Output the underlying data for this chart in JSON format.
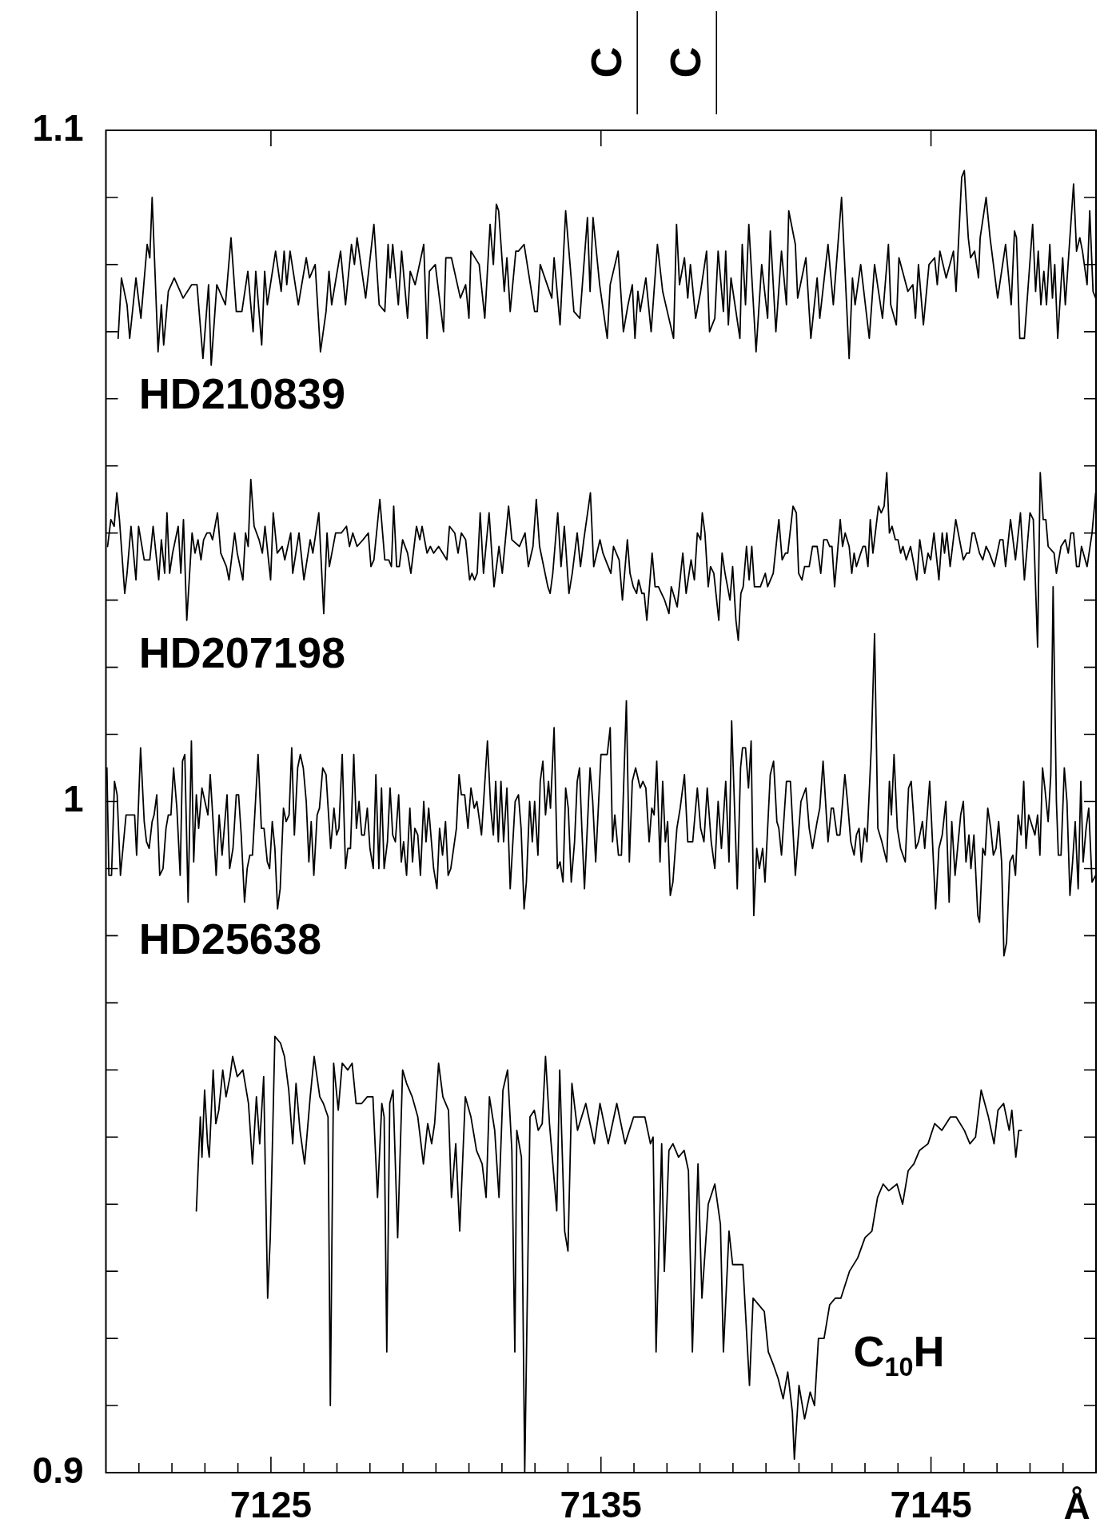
{
  "chart_data": {
    "type": "line",
    "xlabel": "Å",
    "xlim": [
      7120,
      7150
    ],
    "ylim": [
      0.9,
      1.1
    ],
    "xticks": [
      {
        "value": 7121,
        "label": null
      },
      {
        "value": 7122,
        "label": null
      },
      {
        "value": 7123,
        "label": null
      },
      {
        "value": 7124,
        "label": null
      },
      7125,
      {
        "value": 7126,
        "label": null
      },
      {
        "value": 7127,
        "label": null
      },
      {
        "value": 7128,
        "label": null
      },
      {
        "value": 7129,
        "label": null
      },
      {
        "value": 7130,
        "label": null
      },
      {
        "value": 7131,
        "label": null
      },
      {
        "value": 7132,
        "label": null
      },
      {
        "value": 7133,
        "label": null
      },
      {
        "value": 7134,
        "label": null
      },
      7135,
      {
        "value": 7136,
        "label": null
      },
      {
        "value": 7137,
        "label": null
      },
      {
        "value": 7138,
        "label": null
      },
      {
        "value": 7139,
        "label": null
      },
      {
        "value": 7140,
        "label": null
      },
      {
        "value": 7141,
        "label": null
      },
      {
        "value": 7142,
        "label": null
      },
      {
        "value": 7143,
        "label": null
      },
      {
        "value": 7144,
        "label": null
      },
      7145,
      {
        "value": 7146,
        "label": null
      },
      {
        "value": 7147,
        "label": null
      },
      {
        "value": 7148,
        "label": null
      },
      {
        "value": 7149,
        "label": null
      }
    ],
    "yticks": [
      0.9,
      {
        "value": 0.91,
        "label": null
      },
      {
        "value": 0.92,
        "label": null
      },
      {
        "value": 0.93,
        "label": null
      },
      {
        "value": 0.94,
        "label": null
      },
      {
        "value": 0.95,
        "label": null
      },
      {
        "value": 0.96,
        "label": null
      },
      {
        "value": 0.97,
        "label": null
      },
      {
        "value": 0.98,
        "label": null
      },
      {
        "value": 0.99,
        "label": null
      },
      1,
      {
        "value": 1.01,
        "label": null
      },
      {
        "value": 1.02,
        "label": null
      },
      {
        "value": 1.03,
        "label": null
      },
      {
        "value": 1.04,
        "label": null
      },
      {
        "value": 1.05,
        "label": null
      },
      {
        "value": 1.06,
        "label": null
      },
      {
        "value": 1.07,
        "label": null
      },
      {
        "value": 1.08,
        "label": null
      },
      {
        "value": 1.09,
        "label": null
      },
      1.1
    ],
    "ref_lines": [
      {
        "axis": "x",
        "value": 7136.1,
        "label": "C"
      },
      {
        "axis": "x",
        "value": 7138.5,
        "label": "C"
      }
    ],
    "legend": "left",
    "series": [
      {
        "name": "HD210839",
        "color": "#000000",
        "x": [
          7120.37,
          7120.47,
          7120.64,
          7120.72,
          7120.91,
          7121.06,
          7121.25,
          7121.33,
          7121.4,
          7121.58,
          7121.68,
          7121.75,
          7121.89,
          7122.07,
          7122.34,
          7122.6,
          7122.76,
          7122.94,
          7123.11,
          7123.19,
          7123.36,
          7123.62,
          7123.79,
          7123.95,
          7124.12,
          7124.3,
          7124.46,
          7124.54,
          7124.72,
          7124.81,
          7124.89,
          7125.14,
          7125.31,
          7125.4,
          7125.48,
          7125.58,
          7125.83,
          7126.07,
          7126.17,
          7126.34,
          7126.5,
          7126.67,
          7126.76,
          7126.84,
          7127.11,
          7127.26,
          7127.44,
          7127.53,
          7127.61,
          7127.87,
          7128.12,
          7128.28,
          7128.45,
          7128.55,
          7128.61,
          7128.69,
          7128.86,
          7128.96,
          7129.14,
          7129.22,
          7129.37,
          7129.63,
          7129.73,
          7129.8,
          7129.98,
          7130.23,
          7130.3,
          7130.47,
          7130.74,
          7130.9,
          7131.0,
          7131.06,
          7131.31,
          7131.48,
          7131.64,
          7131.74,
          7131.83,
          7131.9,
          7132.07,
          7132.15,
          7132.25,
          7132.42,
          7132.5,
          7132.67,
          7132.99,
          7133.07,
          7133.16,
          7133.51,
          7133.58,
          7133.76,
          7133.93,
          7134.18,
          7134.36,
          7134.59,
          7134.67,
          7134.76,
          7134.96,
          7135.19,
          7135.28,
          7135.52,
          7135.68,
          7135.82,
          7135.95,
          7136.03,
          7136.12,
          7136.19,
          7136.36,
          7136.52,
          7136.71,
          7136.87,
          7137.01,
          7137.2,
          7137.29,
          7137.38,
          7137.53,
          7137.63,
          7137.71,
          7137.87,
          7138.02,
          7138.2,
          7138.29,
          7138.45,
          7138.55,
          7138.71,
          7138.78,
          7138.86,
          7138.94,
          7139.21,
          7139.28,
          7139.38,
          7139.48,
          7139.7,
          7139.87,
          7140.05,
          7140.13,
          7140.3,
          7140.47,
          7140.62,
          7140.69,
          7140.89,
          7140.96,
          7141.21,
          7141.36,
          7141.55,
          7141.63,
          7141.88,
          7142.04,
          7142.29,
          7142.52,
          7142.62,
          7142.7,
          7142.87,
          7143.13,
          7143.29,
          7143.53,
          7143.71,
          7143.78,
          7143.95,
          7144.03,
          7144.3,
          7144.45,
          7144.53,
          7144.62,
          7144.77,
          7144.94,
          7145.11,
          7145.19,
          7145.27,
          7145.46,
          7145.68,
          7145.76,
          7145.93,
          7146.01,
          7146.13,
          7146.2,
          7146.32,
          7146.44,
          7146.49,
          7146.67,
          7146.79,
          7147.02,
          7147.26,
          7147.43,
          7147.53,
          7147.59,
          7147.69,
          7147.83,
          7148.08,
          7148.17,
          7148.25,
          7148.33,
          7148.42,
          7148.5,
          7148.6,
          7148.68,
          7148.75,
          7148.84,
          7148.99,
          7149.07,
          7149.32,
          7149.41,
          7149.51,
          7149.59,
          7149.73,
          7149.81,
          7149.91,
          7149.99
        ],
        "values": [
          1.069,
          1.078,
          1.074,
          1.069,
          1.078,
          1.072,
          1.083,
          1.081,
          1.09,
          1.067,
          1.074,
          1.068,
          1.076,
          1.078,
          1.075,
          1.077,
          1.077,
          1.066,
          1.077,
          1.065,
          1.077,
          1.074,
          1.084,
          1.073,
          1.073,
          1.079,
          1.07,
          1.079,
          1.068,
          1.079,
          1.074,
          1.082,
          1.076,
          1.082,
          1.077,
          1.082,
          1.074,
          1.081,
          1.078,
          1.08,
          1.067,
          1.073,
          1.079,
          1.074,
          1.082,
          1.074,
          1.083,
          1.08,
          1.084,
          1.075,
          1.086,
          1.074,
          1.073,
          1.083,
          1.078,
          1.083,
          1.074,
          1.082,
          1.072,
          1.079,
          1.077,
          1.083,
          1.069,
          1.079,
          1.08,
          1.07,
          1.081,
          1.081,
          1.075,
          1.077,
          1.072,
          1.082,
          1.08,
          1.072,
          1.086,
          1.08,
          1.089,
          1.088,
          1.076,
          1.081,
          1.073,
          1.082,
          1.082,
          1.083,
          1.073,
          1.073,
          1.08,
          1.075,
          1.081,
          1.071,
          1.088,
          1.073,
          1.072,
          1.087,
          1.076,
          1.087,
          1.077,
          1.069,
          1.077,
          1.082,
          1.07,
          1.074,
          1.077,
          1.069,
          1.076,
          1.073,
          1.078,
          1.07,
          1.083,
          1.076,
          1.073,
          1.069,
          1.086,
          1.077,
          1.081,
          1.075,
          1.08,
          1.072,
          1.076,
          1.082,
          1.07,
          1.072,
          1.082,
          1.073,
          1.082,
          1.071,
          1.078,
          1.069,
          1.083,
          1.074,
          1.086,
          1.067,
          1.08,
          1.072,
          1.085,
          1.07,
          1.082,
          1.074,
          1.088,
          1.083,
          1.075,
          1.081,
          1.069,
          1.078,
          1.072,
          1.083,
          1.074,
          1.09,
          1.066,
          1.078,
          1.074,
          1.08,
          1.069,
          1.08,
          1.072,
          1.083,
          1.074,
          1.071,
          1.081,
          1.076,
          1.077,
          1.072,
          1.08,
          1.071,
          1.08,
          1.081,
          1.077,
          1.082,
          1.078,
          1.082,
          1.076,
          1.093,
          1.094,
          1.084,
          1.081,
          1.082,
          1.078,
          1.084,
          1.09,
          1.084,
          1.075,
          1.083,
          1.074,
          1.085,
          1.084,
          1.069,
          1.069,
          1.086,
          1.076,
          1.082,
          1.074,
          1.079,
          1.074,
          1.083,
          1.075,
          1.08,
          1.069,
          1.081,
          1.074,
          1.092,
          1.082,
          1.084,
          1.082,
          1.077,
          1.088,
          1.076,
          1.075
        ]
      },
      {
        "name": "HD207198",
        "color": "#000000",
        "x": [
          7120.05,
          7120.15,
          7120.25,
          7120.33,
          7120.41,
          7120.57,
          7120.64,
          7120.76,
          7120.91,
          7120.99,
          7121.16,
          7121.33,
          7121.43,
          7121.6,
          7121.68,
          7121.78,
          7121.85,
          7121.93,
          7122.02,
          7122.19,
          7122.27,
          7122.35,
          7122.45,
          7122.61,
          7122.7,
          7122.79,
          7122.88,
          7122.96,
          7123.06,
          7123.16,
          7123.23,
          7123.38,
          7123.48,
          7123.65,
          7123.73,
          7123.9,
          7123.98,
          7124.15,
          7124.23,
          7124.31,
          7124.39,
          7124.49,
          7124.64,
          7124.74,
          7124.82,
          7124.99,
          7125.07,
          7125.19,
          7125.34,
          7125.42,
          7125.6,
          7125.66,
          7125.85,
          7126.0,
          7126.19,
          7126.27,
          7126.45,
          7126.6,
          7126.7,
          7126.77,
          7126.96,
          7127.13,
          7127.29,
          7127.38,
          7127.48,
          7127.61,
          7127.79,
          7127.95,
          7128.03,
          7128.12,
          7128.3,
          7128.45,
          7128.57,
          7128.65,
          7128.72,
          7128.81,
          7128.89,
          7128.99,
          7129.14,
          7129.24,
          7129.41,
          7129.51,
          7129.58,
          7129.73,
          7129.83,
          7129.93,
          7130.08,
          7130.33,
          7130.41,
          7130.57,
          7130.67,
          7130.77,
          7130.9,
          7131.02,
          7131.09,
          7131.17,
          7131.25,
          7131.34,
          7131.44,
          7131.61,
          7131.76,
          7131.91,
          7132.01,
          7132.2,
          7132.3,
          7132.53,
          7132.7,
          7132.8,
          7132.94,
          7133.04,
          7133.14,
          7133.39,
          7133.46,
          7133.54,
          7133.69,
          7133.79,
          7133.89,
          7134.03,
          7134.13,
          7134.28,
          7134.38,
          7134.48,
          7134.68,
          7134.78,
          7134.97,
          7135.06,
          7135.3,
          7135.38,
          7135.55,
          7135.65,
          7135.8,
          7135.88,
          7135.98,
          7136.08,
          7136.14,
          7136.24,
          7136.31,
          7136.39,
          7136.55,
          7136.64,
          7136.74,
          7136.93,
          7137.06,
          7137.13,
          7137.31,
          7137.48,
          7137.58,
          7137.73,
          7137.83,
          7137.92,
          7138.02,
          7138.07,
          7138.15,
          7138.25,
          7138.32,
          7138.42,
          7138.57,
          7138.67,
          7138.76,
          7138.91,
          7138.99,
          7139.09,
          7139.16,
          7139.24,
          7139.31,
          7139.41,
          7139.49,
          7139.57,
          7139.65,
          7139.83,
          7139.98,
          7140.05,
          7140.22,
          7140.39,
          7140.49,
          7140.59,
          7140.66,
          7140.82,
          7140.92,
          7140.99,
          7141.09,
          7141.17,
          7141.31,
          7141.41,
          7141.55,
          7141.66,
          7141.75,
          7141.85,
          7141.93,
          7142.0,
          7142.08,
          7142.25,
          7142.32,
          7142.4,
          7142.52,
          7142.6,
          7142.67,
          7142.74,
          7142.87,
          7142.94,
          7143.01,
          7143.09,
          7143.16,
          7143.24,
          7143.41,
          7143.49,
          7143.58,
          7143.66,
          7143.74,
          7143.82,
          7143.92,
          7144.0,
          7144.08,
          7144.15,
          7144.25,
          7144.38,
          7144.57,
          7144.66,
          7144.81,
          7144.91,
          7144.99,
          7145.09,
          7145.24,
          7145.34,
          7145.41,
          7145.48,
          7145.58,
          7145.75,
          7145.98,
          7146.08,
          7146.16,
          7146.25,
          7146.32,
          7146.47,
          7146.57,
          7146.67,
          7146.77,
          7146.92,
          7147.09,
          7147.18,
          7147.26,
          7147.41,
          7147.56,
          7147.71,
          7147.83,
          7148.0,
          7148.1,
          7148.23,
          7148.31,
          7148.4,
          7148.48,
          7148.55,
          7148.73,
          7148.8,
          7148.94,
          7149.07,
          7149.16,
          7149.24,
          7149.32,
          7149.41,
          7149.49,
          7149.56,
          7149.73,
          7149.88,
          7149.99
        ],
        "values": [
          1.038,
          1.042,
          1.041,
          1.046,
          1.042,
          1.031,
          1.034,
          1.041,
          1.033,
          1.041,
          1.036,
          1.036,
          1.041,
          1.033,
          1.039,
          1.034,
          1.043,
          1.034,
          1.037,
          1.041,
          1.034,
          1.042,
          1.027,
          1.04,
          1.037,
          1.039,
          1.036,
          1.039,
          1.04,
          1.04,
          1.039,
          1.043,
          1.037,
          1.035,
          1.033,
          1.04,
          1.037,
          1.033,
          1.04,
          1.038,
          1.048,
          1.041,
          1.039,
          1.037,
          1.041,
          1.033,
          1.043,
          1.037,
          1.038,
          1.036,
          1.04,
          1.034,
          1.04,
          1.033,
          1.039,
          1.037,
          1.043,
          1.028,
          1.04,
          1.035,
          1.04,
          1.04,
          1.041,
          1.038,
          1.04,
          1.038,
          1.039,
          1.04,
          1.035,
          1.036,
          1.045,
          1.036,
          1.036,
          1.035,
          1.044,
          1.035,
          1.035,
          1.039,
          1.037,
          1.034,
          1.041,
          1.039,
          1.041,
          1.037,
          1.038,
          1.037,
          1.038,
          1.036,
          1.041,
          1.04,
          1.037,
          1.04,
          1.039,
          1.033,
          1.034,
          1.033,
          1.034,
          1.043,
          1.034,
          1.043,
          1.032,
          1.038,
          1.034,
          1.044,
          1.039,
          1.038,
          1.04,
          1.035,
          1.038,
          1.045,
          1.038,
          1.032,
          1.031,
          1.034,
          1.043,
          1.035,
          1.041,
          1.031,
          1.034,
          1.04,
          1.035,
          1.039,
          1.046,
          1.035,
          1.039,
          1.037,
          1.034,
          1.038,
          1.036,
          1.03,
          1.039,
          1.034,
          1.032,
          1.031,
          1.033,
          1.031,
          1.031,
          1.027,
          1.037,
          1.032,
          1.032,
          1.03,
          1.028,
          1.032,
          1.029,
          1.037,
          1.031,
          1.036,
          1.033,
          1.04,
          1.039,
          1.043,
          1.04,
          1.032,
          1.035,
          1.034,
          1.027,
          1.037,
          1.034,
          1.03,
          1.035,
          1.027,
          1.024,
          1.031,
          1.032,
          1.038,
          1.033,
          1.038,
          1.032,
          1.032,
          1.034,
          1.032,
          1.034,
          1.042,
          1.036,
          1.037,
          1.037,
          1.044,
          1.043,
          1.034,
          1.033,
          1.035,
          1.035,
          1.038,
          1.038,
          1.034,
          1.039,
          1.039,
          1.038,
          1.038,
          1.032,
          1.042,
          1.038,
          1.04,
          1.038,
          1.034,
          1.037,
          1.035,
          1.037,
          1.038,
          1.038,
          1.035,
          1.042,
          1.037,
          1.044,
          1.043,
          1.044,
          1.049,
          1.04,
          1.041,
          1.039,
          1.039,
          1.037,
          1.038,
          1.036,
          1.038,
          1.033,
          1.039,
          1.034,
          1.037,
          1.036,
          1.04,
          1.033,
          1.04,
          1.037,
          1.04,
          1.035,
          1.042,
          1.036,
          1.037,
          1.037,
          1.04,
          1.04,
          1.037,
          1.036,
          1.038,
          1.037,
          1.035,
          1.039,
          1.039,
          1.035,
          1.042,
          1.036,
          1.043,
          1.033,
          1.043,
          1.042,
          1.023,
          1.049,
          1.042,
          1.042,
          1.038,
          1.037,
          1.034,
          1.038,
          1.039,
          1.037,
          1.04,
          1.04,
          1.035,
          1.035,
          1.038,
          1.035,
          1.04,
          1.046
        ]
      },
      {
        "name": "HD25638",
        "color": "#000000",
        "x": [
          7120.03,
          7120.09,
          7120.17,
          7120.26,
          7120.34,
          7120.44,
          7120.61,
          7120.87,
          7120.93,
          7121.05,
          7121.16,
          7121.23,
          7121.31,
          7121.4,
          7121.46,
          7121.54,
          7121.63,
          7121.73,
          7121.82,
          7121.89,
          7121.97,
          7122.05,
          7122.15,
          7122.25,
          7122.32,
          7122.39,
          7122.49,
          7122.59,
          7122.66,
          7122.74,
          7122.81,
          7122.91,
          7123.09,
          7123.16,
          7123.26,
          7123.34,
          7123.43,
          7123.52,
          7123.67,
          7123.75,
          7123.85,
          7123.95,
          7124.02,
          7124.1,
          7124.2,
          7124.28,
          7124.36,
          7124.44,
          7124.51,
          7124.61,
          7124.71,
          7124.79,
          7124.89,
          7124.96,
          7125.04,
          7125.12,
          7125.2,
          7125.28,
          7125.38,
          7125.46,
          7125.55,
          7125.63,
          7125.71,
          7125.81,
          7125.89,
          7125.98,
          7126.07,
          7126.15,
          7126.22,
          7126.3,
          7126.4,
          7126.47,
          7126.57,
          7126.67,
          7126.81,
          7126.91,
          7126.99,
          7127.06,
          7127.16,
          7127.26,
          7127.33,
          7127.41,
          7127.51,
          7127.59,
          7127.67,
          7127.75,
          7127.83,
          7127.92,
          7128.0,
          7128.1,
          7128.18,
          7128.27,
          7128.35,
          7128.43,
          7128.53,
          7128.61,
          7128.69,
          7128.77,
          7128.87,
          7128.95,
          7129.02,
          7129.11,
          7129.21,
          7129.29,
          7129.36,
          7129.45,
          7129.53,
          7129.63,
          7129.7,
          7129.78,
          7129.93,
          7130.03,
          7130.11,
          7130.2,
          7130.29,
          7130.37,
          7130.45,
          7130.62,
          7130.7,
          7130.77,
          7130.87,
          7130.97,
          7131.06,
          7131.16,
          7131.24,
          7131.38,
          7131.56,
          7131.66,
          7131.74,
          7131.81,
          7131.89,
          7131.97,
          7132.05,
          7132.15,
          7132.25,
          7132.4,
          7132.5,
          7132.58,
          7132.67,
          7132.74,
          7132.84,
          7132.92,
          7132.99,
          7133.09,
          7133.16,
          7133.24,
          7133.32,
          7133.41,
          7133.47,
          7133.58,
          7133.68,
          7133.76,
          7133.85,
          7133.93,
          7134.01,
          7134.1,
          7134.2,
          7134.28,
          7134.35,
          7134.42,
          7134.5,
          7134.67,
          7134.75,
          7134.84,
          7135.0,
          7135.19,
          7135.28,
          7135.35,
          7135.42,
          7135.53,
          7135.62,
          7135.77,
          7135.86,
          7135.95,
          7136.05,
          7136.19,
          7136.27,
          7136.36,
          7136.46,
          7136.54,
          7136.61,
          7136.69,
          7136.79,
          7136.87,
          7136.95,
          7137.02,
          7137.1,
          7137.18,
          7137.3,
          7137.4,
          7137.53,
          7137.63,
          7137.78,
          7137.92,
          7138.02,
          7138.12,
          7138.22,
          7138.34,
          7138.45,
          7138.55,
          7138.65,
          7138.78,
          7138.88,
          7138.96,
          7139.13,
          7139.23,
          7139.29,
          7139.38,
          7139.47,
          7139.55,
          7139.63,
          7139.72,
          7139.8,
          7139.9,
          7139.97,
          7140.13,
          7140.23,
          7140.33,
          7140.39,
          7140.47,
          7140.62,
          7140.74,
          7140.89,
          7141.06,
          7141.21,
          7141.31,
          7141.41,
          7141.55,
          7141.63,
          7141.73,
          7141.88,
          7141.98,
          7142.04,
          7142.15,
          7142.24,
          7142.39,
          7142.47,
          7142.57,
          7142.67,
          7142.74,
          7142.82,
          7142.89,
          7142.99,
          7143.06,
          7143.19,
          7143.29,
          7143.39,
          7143.51,
          7143.66,
          7143.74,
          7143.8,
          7143.88,
          7143.98,
          7144.08,
          7144.22,
          7144.32,
          7144.4,
          7144.54,
          7144.62,
          7144.74,
          7144.81,
          7144.96,
          7145.14,
          7145.24,
          7145.34,
          7145.45,
          7145.55,
          7145.63,
          7145.73,
          7145.9,
          7145.98,
          7146.06,
          7146.15,
          7146.21,
          7146.3,
          7146.42,
          7146.47,
          7146.57,
          7146.64,
          7146.72,
          7146.81,
          7146.89,
          7146.97,
          7147.05,
          7147.14,
          7147.21,
          7147.29,
          7147.39,
          7147.48,
          7147.56,
          7147.64,
          7147.73,
          7147.81,
          7147.88,
          7147.96,
          7148.15,
          7148.23,
          7148.3,
          7148.38,
          7148.45,
          7148.55,
          7148.63,
          7148.7,
          7148.8,
          7148.86,
          7148.94,
          7149.04,
          7149.12,
          7149.21,
          7149.29,
          7149.37,
          7149.46,
          7149.54,
          7149.61,
          7149.7,
          7149.78,
          7149.88,
          7149.99
        ],
        "values": [
          1.005,
          0.989,
          0.989,
          1.003,
          1.001,
          0.989,
          0.998,
          0.998,
          0.992,
          1.008,
          0.997,
          0.994,
          0.993,
          0.997,
          0.998,
          1.001,
          0.989,
          0.99,
          0.996,
          0.998,
          0.998,
          1.005,
          0.999,
          0.989,
          1.006,
          1.007,
          0.985,
          1.009,
          0.991,
          1.001,
          0.996,
          1.002,
          0.998,
          1.004,
          0.996,
          0.989,
          0.998,
          0.992,
          1.001,
          0.99,
          0.993,
          1.001,
          1.001,
          0.995,
          0.985,
          0.99,
          0.992,
          0.992,
          0.998,
          1.007,
          0.996,
          0.996,
          0.991,
          0.99,
          0.997,
          0.993,
          0.984,
          0.987,
          0.999,
          0.997,
          0.998,
          1.008,
          0.995,
          1.005,
          1.007,
          1.005,
          1.0,
          0.991,
          0.997,
          0.989,
          0.998,
          0.999,
          1.005,
          1.004,
          0.993,
          0.999,
          0.995,
          0.996,
          1.007,
          0.99,
          0.993,
          0.993,
          1.007,
          0.996,
          1.0,
          0.995,
          0.995,
          0.999,
          0.993,
          0.99,
          1.004,
          0.99,
          1.002,
          0.99,
          0.994,
          1.002,
          0.995,
          0.994,
          1.001,
          0.991,
          0.994,
          0.989,
          0.999,
          0.991,
          0.996,
          0.995,
          0.989,
          1.0,
          0.994,
          0.999,
          0.99,
          0.987,
          0.996,
          0.992,
          0.997,
          0.989,
          0.99,
          0.996,
          1.004,
          1.001,
          1.001,
          0.996,
          1.002,
          0.999,
          1.0,
          0.995,
          1.009,
          0.999,
          0.995,
          1.003,
          0.994,
          1.003,
          0.994,
          1.002,
          0.987,
          1.0,
          1.001,
          0.996,
          0.984,
          0.988,
          1.0,
          0.994,
          1.0,
          0.992,
          1.003,
          1.006,
          0.998,
          1.003,
          0.999,
          1.011,
          0.99,
          0.991,
          0.988,
          1.002,
          0.999,
          0.988,
          0.994,
          1.003,
          1.005,
          0.996,
          0.987,
          1.005,
          1.0,
          0.991,
          1.007,
          1.007,
          1.011,
          0.994,
          0.998,
          0.992,
          0.992,
          1.015,
          0.991,
          1.003,
          1.005,
          1.002,
          1.003,
          1.002,
          0.994,
          0.999,
          0.998,
          1.006,
          0.991,
          1.003,
          0.994,
          0.997,
          0.986,
          0.988,
          0.996,
          0.999,
          1.004,
          0.994,
          0.994,
          1.002,
          0.996,
          0.994,
          1.002,
          0.994,
          0.99,
          1.0,
          0.993,
          1.003,
          0.991,
          1.012,
          0.987,
          1.005,
          1.008,
          1.008,
          1.002,
          1.009,
          0.983,
          0.993,
          0.99,
          0.993,
          0.988,
          1.004,
          1.006,
          0.997,
          0.996,
          0.992,
          1.003,
          1.003,
          0.989,
          1.0,
          1.002,
          0.996,
          0.993,
          0.997,
          0.999,
          1.006,
          0.994,
          0.999,
          0.999,
          0.995,
          0.995,
          1.004,
          1.0,
          0.994,
          0.992,
          0.995,
          0.996,
          0.991,
          0.996,
          0.994,
          1.008,
          1.025,
          0.996,
          0.994,
          0.991,
          1.003,
          0.998,
          1.007,
          0.996,
          0.993,
          0.991,
          1.002,
          1.003,
          0.993,
          0.994,
          0.997,
          0.993,
          1.003,
          0.984,
          0.993,
          0.995,
          1.0,
          0.985,
          0.997,
          0.989,
          0.998,
          1.0,
          0.991,
          0.995,
          0.99,
          0.995,
          0.983,
          0.982,
          0.993,
          0.992,
          0.999,
          0.996,
          0.992,
          0.993,
          0.997,
          0.991,
          0.977,
          0.979,
          0.991,
          0.992,
          0.989,
          0.998,
          0.995,
          1.003,
          0.993,
          0.998,
          0.995,
          0.998,
          0.992,
          1.005,
          1.002,
          0.997,
          1.004,
          1.032,
          1.0,
          0.992,
          0.992,
          1.005,
          1.0,
          0.986,
          0.991,
          0.997,
          0.987,
          1.003,
          0.991,
          0.996,
          0.999,
          0.988,
          0.989
        ]
      },
      {
        "name": "C$_{10}$H",
        "color": "#000000",
        "x": [
          7122.74,
          7122.79,
          7122.86,
          7122.91,
          7122.99,
          7123.08,
          7123.13,
          7123.25,
          7123.33,
          7123.42,
          7123.54,
          7123.64,
          7123.76,
          7123.84,
          7123.98,
          7124.15,
          7124.32,
          7124.44,
          7124.56,
          7124.66,
          7124.78,
          7124.9,
          7124.98,
          7125.12,
          7125.29,
          7125.41,
          7125.54,
          7125.66,
          7125.76,
          7125.88,
          7126.02,
          7126.19,
          7126.31,
          7126.48,
          7126.59,
          7126.73,
          7126.8,
          7126.9,
          7127.04,
          7127.16,
          7127.33,
          7127.46,
          7127.58,
          7127.75,
          7127.92,
          7128.09,
          7128.23,
          7128.36,
          7128.43,
          7128.51,
          7128.6,
          7128.7,
          7128.84,
          7128.99,
          7129.11,
          7129.28,
          7129.45,
          7129.62,
          7129.75,
          7129.87,
          7129.96,
          7130.08,
          7130.21,
          7130.38,
          7130.47,
          7130.6,
          7130.72,
          7130.89,
          7131.06,
          7131.23,
          7131.4,
          7131.52,
          7131.62,
          7131.78,
          7131.91,
          7132.03,
          7132.17,
          7132.3,
          7132.39,
          7132.45,
          7132.59,
          7132.69,
          7132.85,
          7132.98,
          7133.1,
          7133.22,
          7133.32,
          7133.44,
          7133.66,
          7133.75,
          7133.9,
          7134.0,
          7134.12,
          7134.29,
          7134.54,
          7134.8,
          7134.97,
          7135.22,
          7135.48,
          7135.73,
          7135.99,
          7136.33,
          7136.5,
          7136.58,
          7136.67,
          7136.84,
          7136.92,
          7137.06,
          7137.18,
          7137.35,
          7137.52,
          7137.65,
          7137.77,
          7137.94,
          7138.06,
          7138.25,
          7138.45,
          7138.62,
          7138.71,
          7138.88,
          7138.99,
          7139.16,
          7139.3,
          7139.5,
          7139.61,
          7139.78,
          7139.95,
          7140.07,
          7140.23,
          7140.37,
          7140.52,
          7140.66,
          7140.8,
          7140.86,
          7141.0,
          7141.17,
          7141.34,
          7141.47,
          7141.59,
          7141.76,
          7141.93,
          7142.1,
          7142.27,
          7142.53,
          7142.78,
          7143.0,
          7143.21,
          7143.38,
          7143.55,
          7143.72,
          7143.97,
          7144.14,
          7144.31,
          7144.48,
          7144.65,
          7144.91,
          7145.11,
          7145.33,
          7145.59,
          7145.76,
          7146.01,
          7146.18,
          7146.35,
          7146.52,
          7146.74,
          7146.91,
          7147.03,
          7147.2,
          7147.37,
          7147.45,
          7147.57,
          7147.66,
          7147.74
        ],
        "values": [
          0.939,
          0.945,
          0.953,
          0.947,
          0.957,
          0.949,
          0.947,
          0.96,
          0.952,
          0.954,
          0.96,
          0.956,
          0.959,
          0.962,
          0.959,
          0.96,
          0.955,
          0.946,
          0.956,
          0.949,
          0.959,
          0.926,
          0.935,
          0.965,
          0.964,
          0.962,
          0.957,
          0.949,
          0.958,
          0.951,
          0.946,
          0.956,
          0.962,
          0.956,
          0.955,
          0.953,
          0.91,
          0.961,
          0.954,
          0.961,
          0.96,
          0.961,
          0.955,
          0.955,
          0.956,
          0.956,
          0.941,
          0.955,
          0.953,
          0.918,
          0.955,
          0.957,
          0.935,
          0.96,
          0.958,
          0.956,
          0.953,
          0.946,
          0.952,
          0.949,
          0.952,
          0.961,
          0.956,
          0.954,
          0.941,
          0.949,
          0.936,
          0.956,
          0.953,
          0.948,
          0.946,
          0.941,
          0.956,
          0.951,
          0.941,
          0.957,
          0.96,
          0.948,
          0.918,
          0.951,
          0.947,
          0.9,
          0.953,
          0.954,
          0.951,
          0.952,
          0.962,
          0.952,
          0.939,
          0.96,
          0.936,
          0.933,
          0.958,
          0.951,
          0.955,
          0.949,
          0.955,
          0.949,
          0.955,
          0.949,
          0.953,
          0.953,
          0.949,
          0.95,
          0.918,
          0.949,
          0.93,
          0.948,
          0.949,
          0.947,
          0.948,
          0.945,
          0.918,
          0.946,
          0.926,
          0.94,
          0.943,
          0.937,
          0.918,
          0.936,
          0.931,
          0.931,
          0.931,
          0.913,
          0.926,
          0.925,
          0.924,
          0.918,
          0.916,
          0.914,
          0.911,
          0.915,
          0.909,
          0.902,
          0.913,
          0.908,
          0.912,
          0.91,
          0.92,
          0.92,
          0.925,
          0.926,
          0.926,
          0.93,
          0.932,
          0.935,
          0.936,
          0.941,
          0.943,
          0.942,
          0.943,
          0.94,
          0.945,
          0.946,
          0.948,
          0.949,
          0.952,
          0.951,
          0.953,
          0.953,
          0.951,
          0.949,
          0.95,
          0.957,
          0.953,
          0.949,
          0.954,
          0.955,
          0.951,
          0.954,
          0.947,
          0.951,
          0.951
        ]
      }
    ]
  }
}
